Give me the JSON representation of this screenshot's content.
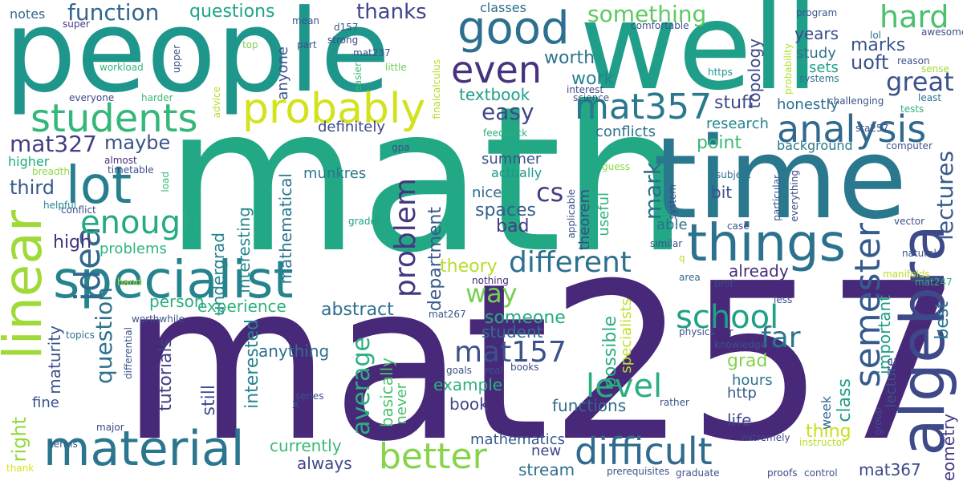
{
  "words": [
    {
      "text": "mat257",
      "color": "#482878"
    },
    {
      "text": "math",
      "color": "#22a884"
    },
    {
      "text": "people",
      "color": "#1f968b"
    },
    {
      "text": "well",
      "color": "#1f9e89"
    },
    {
      "text": "time",
      "color": "#2a788e"
    },
    {
      "text": "specialist",
      "color": "#25838e"
    },
    {
      "text": "algebra",
      "color": "#3e4989"
    },
    {
      "text": "linear",
      "color": "#a0da39"
    },
    {
      "text": "lot",
      "color": "#277f8e"
    },
    {
      "text": "things",
      "color": "#2c728e"
    },
    {
      "text": "material",
      "color": "#2a768e"
    },
    {
      "text": "good",
      "color": "#2d6f8e"
    },
    {
      "text": "probably",
      "color": "#d2e21b"
    },
    {
      "text": "students",
      "color": "#35b779"
    },
    {
      "text": "analysis",
      "color": "#31688e"
    },
    {
      "text": "even",
      "color": "#46327e"
    },
    {
      "text": "mat357",
      "color": "#2a788e"
    },
    {
      "text": "difficult",
      "color": "#306a8e"
    },
    {
      "text": "better",
      "color": "#86d549"
    },
    {
      "text": "semester",
      "color": "#365c8d"
    },
    {
      "text": "idea",
      "color": "#31688e"
    },
    {
      "text": "different",
      "color": "#2d708e"
    },
    {
      "text": "hard",
      "color": "#4ac16d"
    },
    {
      "text": "great",
      "color": "#3b528b"
    },
    {
      "text": "enough",
      "color": "#25ab82"
    },
    {
      "text": "school",
      "color": "#1fa187"
    },
    {
      "text": "level",
      "color": "#29af7f"
    },
    {
      "text": "function",
      "color": "#32648e"
    },
    {
      "text": "mat327",
      "color": "#433e85"
    },
    {
      "text": "problem",
      "color": "#453781"
    },
    {
      "text": "mat157",
      "color": "#3b528b"
    },
    {
      "text": "far",
      "color": "#2a768e"
    },
    {
      "text": "lectures",
      "color": "#38598c"
    },
    {
      "text": "something",
      "color": "#5ec962"
    },
    {
      "text": "easy",
      "color": "#3f4788"
    },
    {
      "text": "thanks",
      "color": "#404688"
    },
    {
      "text": "cs",
      "color": "#433e85"
    },
    {
      "text": "way",
      "color": "#75d054"
    },
    {
      "text": "question",
      "color": "#2c728e"
    },
    {
      "text": "average",
      "color": "#2ab07f"
    },
    {
      "text": "third",
      "color": "#38598c"
    },
    {
      "text": "mark",
      "color": "#2e6e8e"
    },
    {
      "text": "years",
      "color": "#3d4d8a"
    },
    {
      "text": "marks",
      "color": "#39568c"
    },
    {
      "text": "uoft",
      "color": "#3b528b"
    },
    {
      "text": "questions",
      "color": "#20a386"
    },
    {
      "text": "textbook",
      "color": "#1f9f88"
    },
    {
      "text": "worth",
      "color": "#2c728e"
    },
    {
      "text": "work",
      "color": "#25848e"
    },
    {
      "text": "stuff",
      "color": "#3e4a89"
    },
    {
      "text": "conflicts",
      "color": "#2c728e"
    },
    {
      "text": "maybe",
      "color": "#3b528b"
    },
    {
      "text": "high",
      "color": "#46327e"
    },
    {
      "text": "right",
      "color": "#95d840"
    },
    {
      "text": "maturity",
      "color": "#3b528b"
    },
    {
      "text": "tutorials",
      "color": "#424086"
    },
    {
      "text": "still",
      "color": "#3d4d8a"
    },
    {
      "text": "interested",
      "color": "#26828e"
    },
    {
      "text": "mathematical",
      "color": "#2a778e"
    },
    {
      "text": "interesting",
      "color": "#24868e"
    },
    {
      "text": "undergrad",
      "color": "#26828e"
    },
    {
      "text": "experience",
      "color": "#2db27d"
    },
    {
      "text": "abstract",
      "color": "#2e6e8e"
    },
    {
      "text": "person",
      "color": "#29af7f"
    },
    {
      "text": "theory",
      "color": "#b5de2b"
    },
    {
      "text": "department",
      "color": "#38598c"
    },
    {
      "text": "student",
      "color": "#2c718e"
    },
    {
      "text": "someone",
      "color": "#25ac82"
    },
    {
      "text": "example",
      "color": "#2ab07f"
    },
    {
      "text": "book",
      "color": "#3f4788"
    },
    {
      "text": "functions",
      "color": "#2f6c8e"
    },
    {
      "text": "mathematics",
      "color": "#375a8c"
    },
    {
      "text": "stream",
      "color": "#2e6f8e"
    },
    {
      "text": "currently",
      "color": "#3aba76"
    },
    {
      "text": "always",
      "color": "#3f4889"
    },
    {
      "text": "anything",
      "color": "#2d718e"
    },
    {
      "text": "basically",
      "color": "#4cc26c"
    },
    {
      "text": "never",
      "color": "#4ac16d"
    },
    {
      "text": "new",
      "color": "#3e4a89"
    },
    {
      "text": "possible",
      "color": "#29af7f"
    },
    {
      "text": "specialists",
      "color": "#bddf26"
    },
    {
      "text": "grad",
      "color": "#84d44b"
    },
    {
      "text": "hours",
      "color": "#2c738e"
    },
    {
      "text": "http",
      "color": "#375a8c"
    },
    {
      "text": "class",
      "color": "#1f9e89"
    },
    {
      "text": "thing",
      "color": "#c8e020"
    },
    {
      "text": "week",
      "color": "#31688e"
    },
    {
      "text": "life",
      "color": "#3f4889"
    },
    {
      "text": "mat367",
      "color": "#3e4989"
    },
    {
      "text": "geometry",
      "color": "#443b84"
    },
    {
      "text": "best",
      "color": "#2b748e"
    },
    {
      "text": "important",
      "color": "#1fa088"
    },
    {
      "text": "lecture",
      "color": "#3b528b"
    },
    {
      "text": "already",
      "color": "#472d7b"
    },
    {
      "text": "research",
      "color": "#24868e"
    },
    {
      "text": "background",
      "color": "#2a788e"
    },
    {
      "text": "honestly",
      "color": "#2e6e8e"
    },
    {
      "text": "topology",
      "color": "#3e4989"
    },
    {
      "text": "study",
      "color": "#2c728e"
    },
    {
      "text": "sets",
      "color": "#1fa188"
    },
    {
      "text": "point",
      "color": "#3ab975"
    },
    {
      "text": "summer",
      "color": "#3b528b"
    },
    {
      "text": "actually",
      "color": "#1f978b"
    },
    {
      "text": "nice",
      "color": "#31688e"
    },
    {
      "text": "spaces",
      "color": "#34608d"
    },
    {
      "text": "bad",
      "color": "#433e85"
    },
    {
      "text": "bit",
      "color": "#3b528b"
    },
    {
      "text": "able",
      "color": "#2d708e"
    },
    {
      "text": "useful",
      "color": "#2eb37c"
    },
    {
      "text": "theorem",
      "color": "#3e4989"
    },
    {
      "text": "definitely",
      "color": "#3e4989"
    },
    {
      "text": "classes",
      "color": "#2e6e8e"
    },
    {
      "text": "munkres",
      "color": "#2a788e"
    },
    {
      "text": "problems",
      "color": "#31b57b"
    },
    {
      "text": "anyone",
      "color": "#3b528b"
    },
    {
      "text": "fine",
      "color": "#3b528b"
    },
    {
      "text": "higher",
      "color": "#22a884"
    },
    {
      "text": "notes",
      "color": "#31688e"
    },
    {
      "text": "super",
      "color": "#443983"
    },
    {
      "text": "workload",
      "color": "#2eb37c"
    },
    {
      "text": "everyone",
      "color": "#3f4889"
    },
    {
      "text": "harder",
      "color": "#3aba76"
    },
    {
      "text": "almost",
      "color": "#472d7b"
    },
    {
      "text": "breadth",
      "color": "#8bd646"
    },
    {
      "text": "timetable",
      "color": "#3d4d8a"
    },
    {
      "text": "helpful",
      "color": "#25848e"
    },
    {
      "text": "conflict",
      "color": "#3b528b"
    },
    {
      "text": "hand",
      "color": "#b5de2b"
    },
    {
      "text": "topics",
      "color": "#2c728e"
    },
    {
      "text": "worthwhile",
      "color": "#3b528b"
    },
    {
      "text": "differential",
      "color": "#3b528b"
    },
    {
      "text": "major",
      "color": "#3f4889"
    },
    {
      "text": "terms",
      "color": "#3b528b"
    },
    {
      "text": "thank",
      "color": "#d8e219"
    },
    {
      "text": "x",
      "color": "#3e4989"
    },
    {
      "text": "mean",
      "color": "#3b528b"
    },
    {
      "text": "d157",
      "color": "#3b528b"
    },
    {
      "text": "strong",
      "color": "#3e4989"
    },
    {
      "text": "part",
      "color": "#3b528b"
    },
    {
      "text": "top",
      "color": "#7ad151"
    },
    {
      "text": "upper",
      "color": "#3b528b"
    },
    {
      "text": "mat237",
      "color": "#3b528b"
    },
    {
      "text": "easier",
      "color": "#3aba76"
    },
    {
      "text": "little",
      "color": "#6ccd5a"
    },
    {
      "text": "advice",
      "color": "#b5de2b"
    },
    {
      "text": "finalcalculus",
      "color": "#b5de2b"
    },
    {
      "text": "feedback",
      "color": "#29af7f"
    },
    {
      "text": "gpa",
      "color": "#3b528b"
    },
    {
      "text": "load",
      "color": "#3aba76"
    },
    {
      "text": "grades",
      "color": "#1fa187"
    },
    {
      "text": "comfortable",
      "color": "#3b528b"
    },
    {
      "text": "science",
      "color": "#3b528b"
    },
    {
      "text": "interest",
      "color": "#3e4989"
    },
    {
      "text": "https",
      "color": "#1f978b"
    },
    {
      "text": "guess",
      "color": "#8bd646"
    },
    {
      "text": "applicable",
      "color": "#3b528b"
    },
    {
      "text": "system",
      "color": "#3e4989"
    },
    {
      "text": "subject",
      "color": "#2c728e"
    },
    {
      "text": "particular",
      "color": "#3b528b"
    },
    {
      "text": "everything",
      "color": "#3e4989"
    },
    {
      "text": "case",
      "color": "#3b528b"
    },
    {
      "text": "similar",
      "color": "#3b528b"
    },
    {
      "text": "q",
      "color": "#b5de2b"
    },
    {
      "text": "area",
      "color": "#31688e"
    },
    {
      "text": "nothing",
      "color": "#482878"
    },
    {
      "text": "mat267",
      "color": "#3b528b"
    },
    {
      "text": "prof",
      "color": "#3e4989"
    },
    {
      "text": "physics",
      "color": "#3b528b"
    },
    {
      "text": "r",
      "color": "#3e4989"
    },
    {
      "text": "less",
      "color": "#3b528b"
    },
    {
      "text": "knowledge",
      "color": "#3b528b"
    },
    {
      "text": "goals",
      "color": "#3b528b"
    },
    {
      "text": "real",
      "color": "#3b528b"
    },
    {
      "text": "books",
      "color": "#3b528b"
    },
    {
      "text": "series",
      "color": "#3b528b"
    },
    {
      "text": "rather",
      "color": "#3b528b"
    },
    {
      "text": "extremely",
      "color": "#3e4989"
    },
    {
      "text": "group",
      "color": "#3b528b"
    },
    {
      "text": "instructor",
      "color": "#b5de2b"
    },
    {
      "text": "prerequisites",
      "color": "#3b528b"
    },
    {
      "text": "graduate",
      "color": "#3b528b"
    },
    {
      "text": "proofs",
      "color": "#3e4989"
    },
    {
      "text": "control",
      "color": "#3b528b"
    },
    {
      "text": "program",
      "color": "#3b528b"
    },
    {
      "text": "lol",
      "color": "#2c728e"
    },
    {
      "text": "awesome",
      "color": "#3b528b"
    },
    {
      "text": "reason",
      "color": "#3b528b"
    },
    {
      "text": "sense",
      "color": "#a0da39"
    },
    {
      "text": "systems",
      "color": "#2c728e"
    },
    {
      "text": "least",
      "color": "#2c728e"
    },
    {
      "text": "tests",
      "color": "#2eb37c"
    },
    {
      "text": "challenging",
      "color": "#3b528b"
    },
    {
      "text": "probability",
      "color": "#b5de2b"
    },
    {
      "text": "computer",
      "color": "#3b528b"
    },
    {
      "text": "sta257",
      "color": "#3b528b"
    },
    {
      "text": "vector",
      "color": "#3b528b"
    },
    {
      "text": "natural",
      "color": "#3b528b"
    },
    {
      "text": "manifolds",
      "color": "#b5de2b"
    },
    {
      "text": "mat247",
      "color": "#2eb37c"
    }
  ]
}
